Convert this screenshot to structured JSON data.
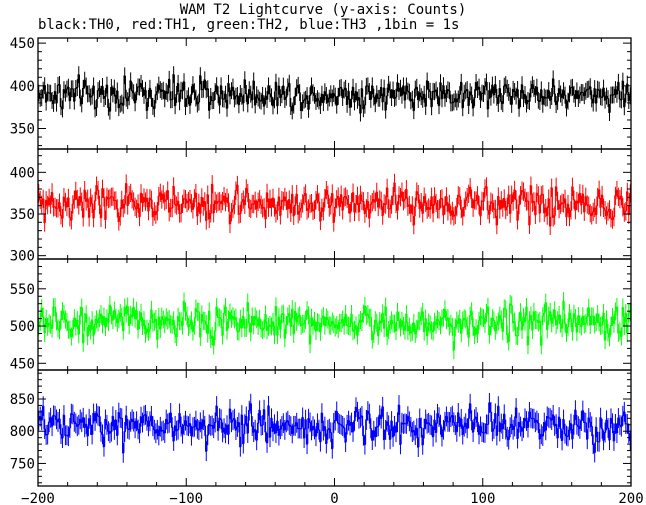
{
  "chart_data": {
    "type": "line",
    "title": "WAM T2 Lightcurve (y-axis: Counts)",
    "subtitle": "black:TH0, red:TH1, green:TH2, blue:TH3 ,1bin = 1s",
    "xlabel": "",
    "ylabel": "",
    "xlim": [
      -200,
      200
    ],
    "x_ticks": [
      "-200",
      "-100",
      "0",
      "100",
      "200"
    ],
    "x_tick_values": [
      -200,
      -100,
      0,
      100,
      200
    ],
    "bin_seconds": 1,
    "grid": false,
    "panels": [
      {
        "name": "TH0",
        "color": "#000000",
        "ylim": [
          326,
          456
        ],
        "y_ticks": [
          "350",
          "400",
          "450"
        ],
        "y_tick_values": [
          350,
          400,
          450
        ],
        "mean": 390,
        "spread": 18
      },
      {
        "name": "TH1",
        "color": "#ff0000",
        "ylim": [
          296,
          428
        ],
        "y_ticks": [
          "300",
          "350",
          "400"
        ],
        "y_tick_values": [
          300,
          350,
          400
        ],
        "mean": 362,
        "spread": 20
      },
      {
        "name": "TH2",
        "color": "#00ff00",
        "ylim": [
          441,
          590
        ],
        "y_ticks": [
          "450",
          "500",
          "550"
        ],
        "y_tick_values": [
          450,
          500,
          550
        ],
        "mean": 505,
        "spread": 22
      },
      {
        "name": "TH3",
        "color": "#0000ff",
        "ylim": [
          715,
          895
        ],
        "y_ticks": [
          "750",
          "800",
          "850"
        ],
        "y_tick_values": [
          750,
          800,
          850
        ],
        "mean": 808,
        "spread": 28
      }
    ]
  }
}
